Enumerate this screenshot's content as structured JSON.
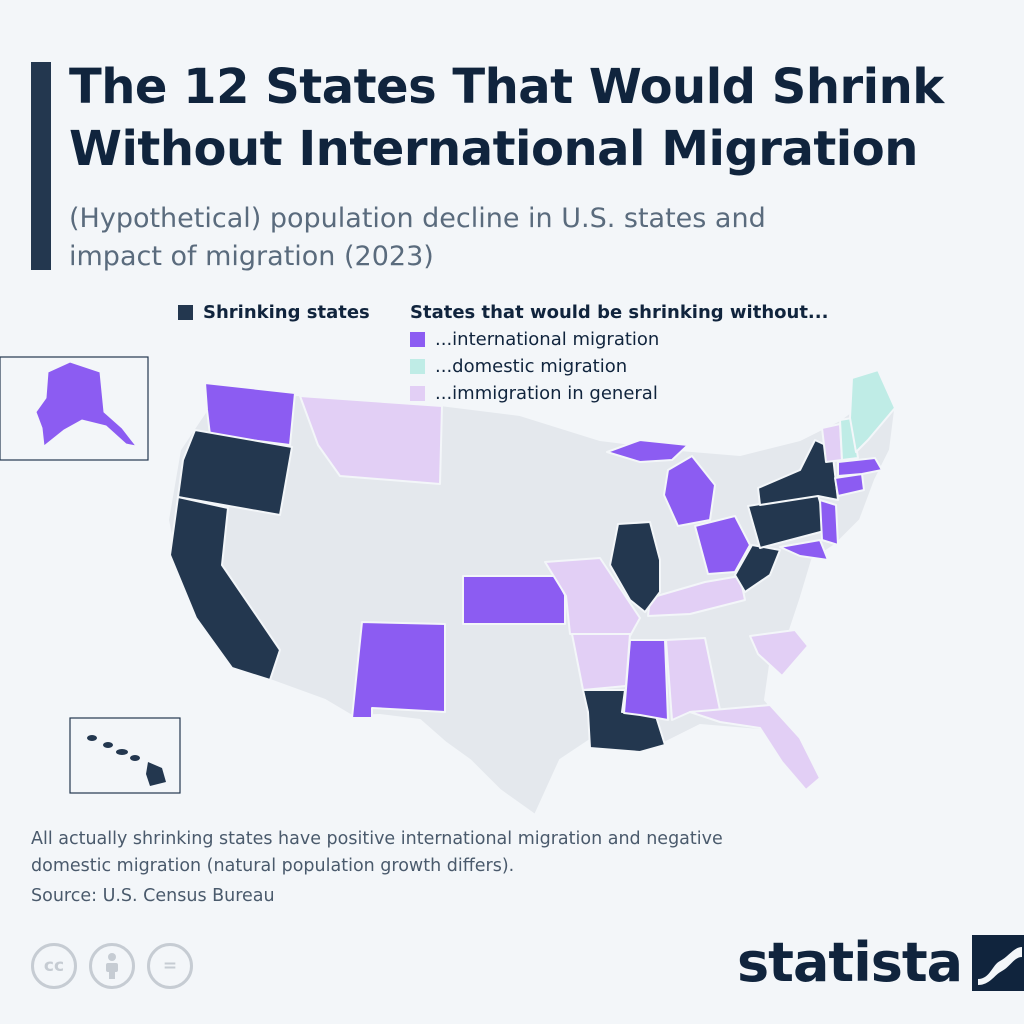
{
  "title": "The 12 States That Would Shrink Without International Migration",
  "subtitle": "(Hypothetical) population decline in U.S. states and impact of migration (2023)",
  "legend": {
    "shrinking_label": "Shrinking states",
    "group_title": "States that would be shrinking without...",
    "items": [
      {
        "label": "...international migration",
        "color": "#8c5cf2"
      },
      {
        "label": "...domestic migration",
        "color": "#bfece6"
      },
      {
        "label": "...immigration in general",
        "color": "#e2cff5"
      }
    ],
    "shrinking_color": "#23374f",
    "base_color": "#e4e8ed"
  },
  "chart_data": {
    "type": "choropleth-map",
    "categories": {
      "shrinking": [
        "California",
        "Oregon",
        "Illinois",
        "Louisiana",
        "New York",
        "Pennsylvania",
        "West Virginia",
        "Hawaii"
      ],
      "without_international_migration": [
        "Alaska",
        "Washington",
        "Michigan",
        "Ohio",
        "Kansas",
        "New Mexico",
        "Mississippi",
        "New Jersey",
        "Maryland",
        "Connecticut",
        "Rhode Island",
        "Massachusetts"
      ],
      "without_domestic_migration": [
        "Maine",
        "New Hampshire"
      ],
      "without_immigration_in_general": [
        "Montana",
        "Missouri",
        "Arkansas",
        "Kentucky",
        "Alabama",
        "Florida",
        "South Carolina",
        "Vermont"
      ]
    }
  },
  "footer": {
    "note": "All actually shrinking states have positive international migration and negative domestic migration (natural population growth differs).",
    "source": "Source: U.S. Census Bureau",
    "brand": "statista",
    "cc_icons": [
      {
        "name": "cc-icon",
        "text": "cc"
      },
      {
        "name": "attribution-icon",
        "text": ""
      },
      {
        "name": "no-derivatives-icon",
        "text": "="
      }
    ]
  }
}
